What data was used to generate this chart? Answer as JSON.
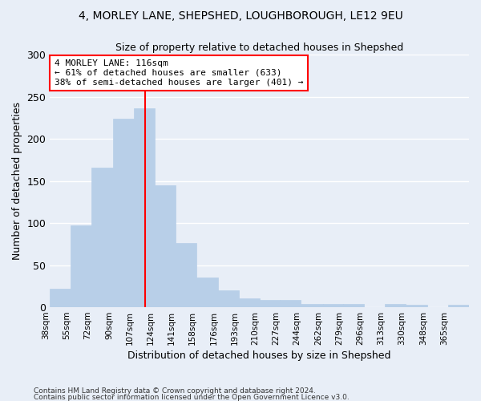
{
  "title1": "4, MORLEY LANE, SHEPSHED, LOUGHBOROUGH, LE12 9EU",
  "title2": "Size of property relative to detached houses in Shepshed",
  "xlabel": "Distribution of detached houses by size in Shepshed",
  "ylabel": "Number of detached properties",
  "bar_color": "#b8cfe8",
  "bar_edgecolor": "#b8cfe8",
  "vline_x": 116,
  "vline_color": "red",
  "annotation_title": "4 MORLEY LANE: 116sqm",
  "annotation_line1": "← 61% of detached houses are smaller (633)",
  "annotation_line2": "38% of semi-detached houses are larger (401) →",
  "annotation_box_color": "white",
  "annotation_box_edgecolor": "red",
  "bins": [
    38,
    55,
    72,
    90,
    107,
    124,
    141,
    158,
    176,
    193,
    210,
    227,
    244,
    262,
    279,
    296,
    313,
    330,
    348,
    365,
    382
  ],
  "counts": [
    22,
    97,
    166,
    224,
    236,
    145,
    76,
    35,
    20,
    11,
    9,
    9,
    4,
    4,
    4,
    0,
    4,
    3,
    0,
    3
  ],
  "ylim": [
    0,
    300
  ],
  "yticks": [
    0,
    50,
    100,
    150,
    200,
    250,
    300
  ],
  "background_color": "#e8eef7",
  "grid_color": "white",
  "footnote1": "Contains HM Land Registry data © Crown copyright and database right 2024.",
  "footnote2": "Contains public sector information licensed under the Open Government Licence v3.0."
}
